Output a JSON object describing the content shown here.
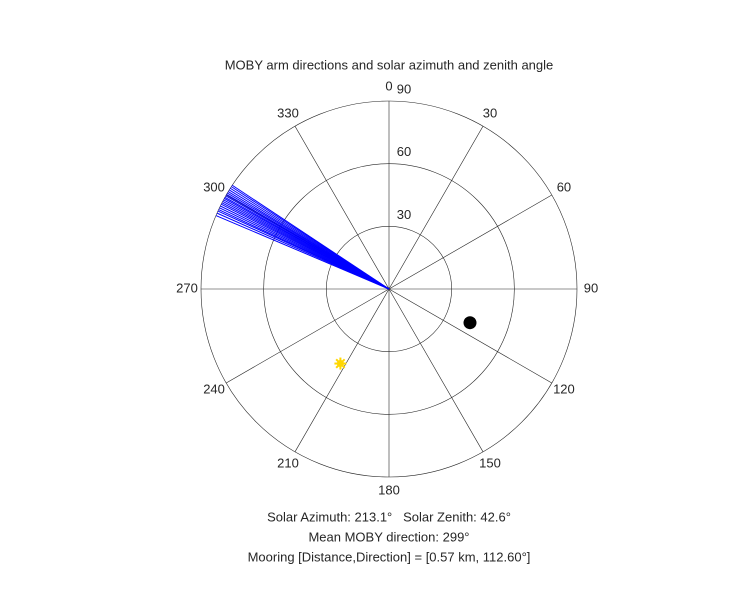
{
  "chart_data": {
    "type": "polar",
    "title": "MOBY arm directions and solar azimuth and zenith angle",
    "theta_zero": "top",
    "theta_direction": "clockwise",
    "rlim": [
      0,
      90
    ],
    "rticks": [
      30,
      60,
      90
    ],
    "thetaticks": [
      0,
      30,
      60,
      90,
      120,
      150,
      180,
      210,
      240,
      270,
      300,
      330
    ],
    "arm_directions": {
      "color": "#0000ff",
      "theta": [
        293,
        293.8,
        294.5,
        295,
        295.6,
        296.2,
        296.8,
        297.3,
        297.8,
        298.3,
        298.8,
        299.2,
        299.7,
        300.2,
        300.7,
        301.2,
        301.8,
        302.4,
        303,
        303.5
      ]
    },
    "sun": {
      "color": "#ffd700",
      "theta": 213.1,
      "r": 42.6
    },
    "mooring": {
      "color": "#000000",
      "theta": 112.6,
      "r": 42
    },
    "annotations": [
      "Solar Azimuth: 213.1°   Solar Zenith: 42.6°",
      "Mean MOBY direction: 299°",
      "Mooring [Distance,Direction] = [0.57 km, 112.60°]"
    ]
  }
}
